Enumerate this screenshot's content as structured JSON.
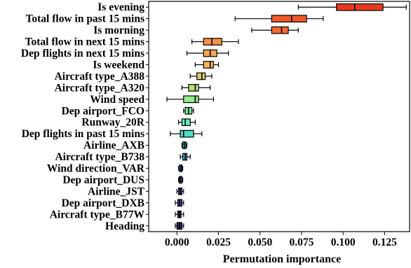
{
  "chart_data": {
    "type": "boxplot",
    "orientation": "horizontal",
    "xlabel": "Permutation importance",
    "ylabel": "",
    "xlim": [
      -0.017,
      0.14
    ],
    "xticks": [
      0.0,
      0.025,
      0.05,
      0.075,
      0.1,
      0.125
    ],
    "xtick_labels": [
      "0.000",
      "0.025",
      "0.050",
      "0.075",
      "0.100",
      "0.125"
    ],
    "grid": false,
    "legend": "none",
    "features": [
      {
        "name": "Is evening",
        "whisker_low": 0.073,
        "q1": 0.096,
        "median": 0.107,
        "q3": 0.124,
        "whisker_high": 0.138,
        "color": "#e8391f"
      },
      {
        "name": "Total flow in past 15 mins",
        "whisker_low": 0.035,
        "q1": 0.057,
        "median": 0.069,
        "q3": 0.078,
        "whisker_high": 0.088,
        "color": "#ee5a2a"
      },
      {
        "name": "Is morning",
        "whisker_low": 0.045,
        "q1": 0.057,
        "median": 0.063,
        "q3": 0.067,
        "whisker_high": 0.073,
        "color": "#f36a2e"
      },
      {
        "name": "Total flow in next 15 mins",
        "whisker_low": 0.009,
        "q1": 0.016,
        "median": 0.021,
        "q3": 0.027,
        "whisker_high": 0.037,
        "color": "#f59248"
      },
      {
        "name": "Dep flights in next 15 mins",
        "whisker_low": 0.006,
        "q1": 0.016,
        "median": 0.02,
        "q3": 0.024,
        "whisker_high": 0.031,
        "color": "#f7a357"
      },
      {
        "name": "Is weekend",
        "whisker_low": 0.011,
        "q1": 0.016,
        "median": 0.02,
        "q3": 0.022,
        "whisker_high": 0.025,
        "color": "#f5b660"
      },
      {
        "name": "Aircraft type_A388",
        "whisker_low": 0.008,
        "q1": 0.012,
        "median": 0.015,
        "q3": 0.017,
        "whisker_high": 0.021,
        "color": "#d8cc72"
      },
      {
        "name": "Aircraft type_A320",
        "whisker_low": 0.003,
        "q1": 0.007,
        "median": 0.011,
        "q3": 0.013,
        "whisker_high": 0.02,
        "color": "#b4e07e"
      },
      {
        "name": "Wind speed",
        "whisker_low": -0.006,
        "q1": 0.004,
        "median": 0.011,
        "q3": 0.013,
        "whisker_high": 0.022,
        "color": "#98ec8f"
      },
      {
        "name": "Dep airport_FCO",
        "whisker_low": 0.004,
        "q1": 0.005,
        "median": 0.007,
        "q3": 0.009,
        "whisker_high": 0.01,
        "color": "#7ef0a5"
      },
      {
        "name": "Runway_20R",
        "whisker_low": 0.001,
        "q1": 0.003,
        "median": 0.005,
        "q3": 0.008,
        "whisker_high": 0.011,
        "color": "#64eab8"
      },
      {
        "name": "Dep flights in past 15 mins",
        "whisker_low": -0.004,
        "q1": 0.002,
        "median": 0.004,
        "q3": 0.01,
        "whisker_high": 0.015,
        "color": "#4fdcc4"
      },
      {
        "name": "Airline_AXB",
        "whisker_low": 0.003,
        "q1": 0.0035,
        "median": 0.0045,
        "q3": 0.0055,
        "whisker_high": 0.006,
        "color": "#3fc4cf"
      },
      {
        "name": "Aircraft type_B738",
        "whisker_low": 0.002,
        "q1": 0.0035,
        "median": 0.005,
        "q3": 0.006,
        "whisker_high": 0.008,
        "color": "#3a9fd4"
      },
      {
        "name": "Wind direction_VAR",
        "whisker_low": 0.001,
        "q1": 0.0015,
        "median": 0.0025,
        "q3": 0.003,
        "whisker_high": 0.0035,
        "color": "#3d7ecf"
      },
      {
        "name": "Dep airport_DUS",
        "whisker_low": 0.001,
        "q1": 0.0015,
        "median": 0.002,
        "q3": 0.003,
        "whisker_high": 0.0035,
        "color": "#455fc1"
      },
      {
        "name": "Airline_JST",
        "whisker_low": 0.0,
        "q1": 0.001,
        "median": 0.002,
        "q3": 0.003,
        "whisker_high": 0.004,
        "color": "#4a48a8"
      },
      {
        "name": "Dep airport_DXB",
        "whisker_low": -0.001,
        "q1": 0.0005,
        "median": 0.0015,
        "q3": 0.003,
        "whisker_high": 0.004,
        "color": "#3f3690"
      },
      {
        "name": "Aircraft type_B77W",
        "whisker_low": -0.001,
        "q1": 0.0005,
        "median": 0.0015,
        "q3": 0.0025,
        "whisker_high": 0.004,
        "color": "#342a78"
      },
      {
        "name": "Heading",
        "whisker_low": -0.001,
        "q1": 0.0,
        "median": 0.0015,
        "q3": 0.003,
        "whisker_high": 0.004,
        "color": "#2d2460"
      }
    ]
  }
}
